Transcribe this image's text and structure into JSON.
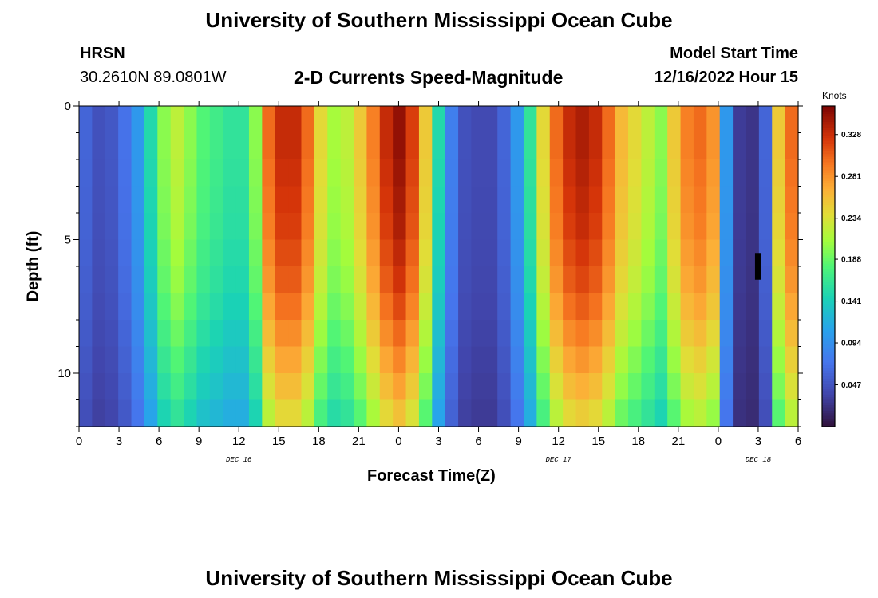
{
  "header": {
    "title": "University of Southern Mississippi Ocean Cube",
    "station": "HRSN",
    "coordinates": "30.2610N  89.0801W",
    "subtitle": "2-D Currents Speed-Magnitude",
    "model_start_label": "Model Start Time",
    "model_start_value": "12/16/2022 Hour 15"
  },
  "footer": {
    "title": "University of Southern Mississippi Ocean Cube"
  },
  "chart_data": {
    "type": "heatmap",
    "title": "2-D Currents Speed-Magnitude",
    "xlabel": "Forecast Time(Z)",
    "ylabel": "Depth (ft)",
    "x_hours": [
      0,
      54
    ],
    "x_tick_labels": [
      "0",
      "3",
      "6",
      "9",
      "12",
      "15",
      "18",
      "21",
      "0",
      "3",
      "6",
      "9",
      "12",
      "15",
      "18",
      "21",
      "0",
      "3",
      "6"
    ],
    "date_labels": [
      {
        "text": "DEC 16",
        "hour": 12
      },
      {
        "text": "DEC 17",
        "hour": 36
      },
      {
        "text": "DEC 18",
        "hour": 51
      }
    ],
    "y_range_ft": [
      0,
      12
    ],
    "y_tick_labels": [
      {
        "value": 0,
        "label": "0"
      },
      {
        "value": 5,
        "label": "5"
      },
      {
        "value": 10,
        "label": "10"
      }
    ],
    "colorbar": {
      "unit": "Knots",
      "range": [
        0.0,
        0.36
      ],
      "ticks": [
        0.047,
        0.094,
        0.141,
        0.188,
        0.234,
        0.281,
        0.328
      ],
      "tick_labels": [
        "0.047",
        "0.094",
        "0.141",
        "0.188",
        "0.234",
        "0.281",
        "0.328"
      ]
    },
    "time_profile_knots": [
      0.06,
      0.045,
      0.05,
      0.07,
      0.1,
      0.15,
      0.2,
      0.22,
      0.2,
      0.18,
      0.17,
      0.16,
      0.16,
      0.2,
      0.3,
      0.33,
      0.33,
      0.3,
      0.24,
      0.21,
      0.22,
      0.25,
      0.29,
      0.33,
      0.35,
      0.32,
      0.25,
      0.15,
      0.08,
      0.045,
      0.04,
      0.04,
      0.06,
      0.1,
      0.16,
      0.24,
      0.3,
      0.33,
      0.34,
      0.33,
      0.3,
      0.26,
      0.24,
      0.22,
      0.2,
      0.25,
      0.29,
      0.3,
      0.28,
      0.1,
      0.03,
      0.025,
      0.06,
      0.25,
      0.3
    ],
    "depth_factor": [
      1.0,
      1.0,
      0.99,
      0.98,
      0.97,
      0.95,
      0.93,
      0.9,
      0.86,
      0.82,
      0.78,
      0.73
    ],
    "missing_cell": {
      "hour": 51,
      "depth_ft": [
        5.5,
        6.5
      ]
    }
  }
}
